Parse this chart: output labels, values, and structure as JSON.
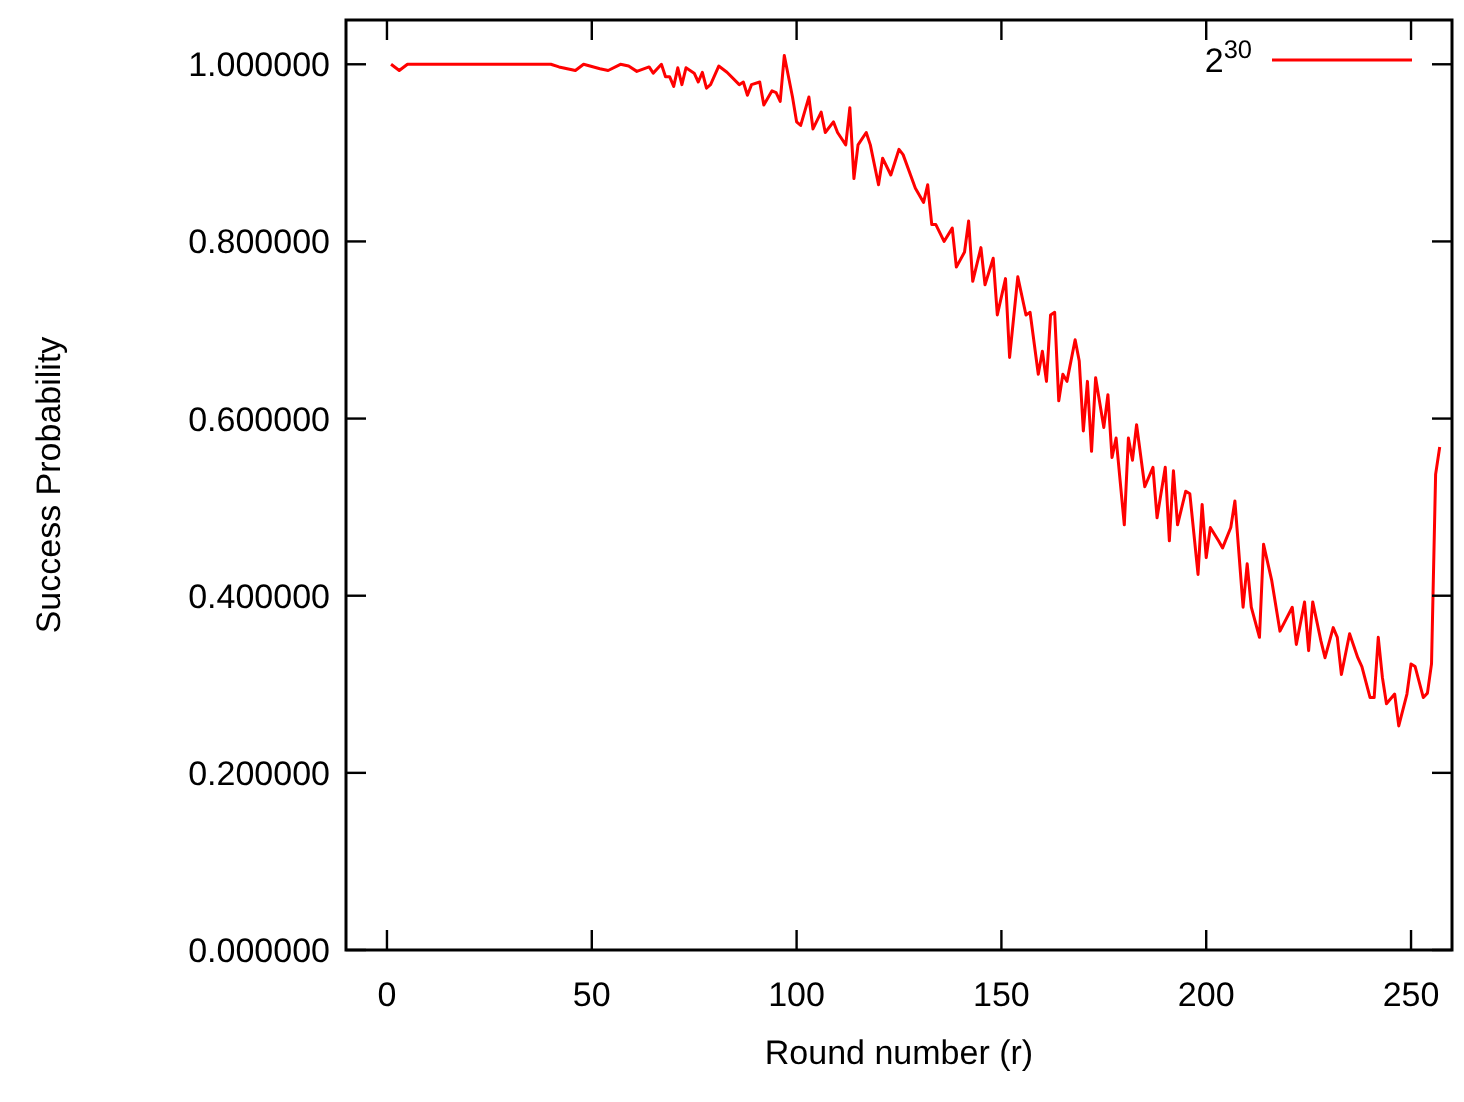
{
  "chart_data": {
    "type": "line",
    "xlabel": "Round number (r)",
    "ylabel": "Success Probability",
    "xlim": [
      -10,
      260
    ],
    "xticks": [
      0,
      50,
      100,
      150,
      200,
      250
    ],
    "ylim": [
      0,
      1.05
    ],
    "yticks": [
      {
        "value": 0,
        "label": "0.000000"
      },
      {
        "value": 0.2,
        "label": "0.200000"
      },
      {
        "value": 0.4,
        "label": "0.400000"
      },
      {
        "value": 0.6,
        "label": "0.600000"
      },
      {
        "value": 0.8,
        "label": "0.800000"
      },
      {
        "value": 1,
        "label": "1.000000"
      }
    ],
    "grid": false,
    "legend": "top right",
    "marker": "none",
    "line_style": "solid",
    "series": [
      {
        "name": "2$^{30}$",
        "color": "#ff0000",
        "x": [
          1,
          3,
          5,
          40,
          42,
          46,
          48,
          52,
          54,
          57,
          59,
          61,
          64,
          65,
          67,
          68,
          69,
          70,
          71,
          72,
          73,
          75,
          76,
          77,
          78,
          79,
          81,
          83,
          86,
          87,
          88,
          89,
          91,
          92,
          94,
          95,
          96,
          97,
          99,
          100,
          101,
          103,
          104,
          106,
          107,
          109,
          110,
          112,
          113,
          114,
          115,
          117,
          118,
          120,
          121,
          123,
          125,
          126,
          129,
          131,
          132,
          133,
          134,
          136,
          138,
          139,
          141,
          142,
          143,
          145,
          146,
          148,
          149,
          151,
          152,
          154,
          156,
          157,
          159,
          160,
          161,
          162,
          163,
          164,
          165,
          166,
          168,
          169,
          170,
          171,
          172,
          173,
          175,
          176,
          177,
          178,
          180,
          181,
          182,
          183,
          185,
          187,
          188,
          190,
          191,
          192,
          193,
          195,
          196,
          198,
          199,
          200,
          201,
          203,
          204,
          206,
          207,
          209,
          210,
          211,
          213,
          214,
          216,
          218,
          221,
          222,
          224,
          225,
          226,
          228,
          229,
          231,
          232,
          233,
          235,
          237,
          238,
          240,
          241,
          242,
          243,
          244,
          246,
          247,
          249,
          250,
          251,
          253,
          254,
          255,
          256,
          257
        ],
        "values": [
          1.0,
          0.993,
          1.0,
          1.0,
          0.997,
          0.993,
          1.0,
          0.995,
          0.993,
          1.0,
          0.998,
          0.992,
          0.997,
          0.99,
          1.0,
          0.986,
          0.986,
          0.975,
          0.996,
          0.977,
          0.996,
          0.99,
          0.98,
          0.991,
          0.973,
          0.977,
          0.998,
          0.991,
          0.977,
          0.98,
          0.965,
          0.977,
          0.98,
          0.954,
          0.97,
          0.968,
          0.958,
          1.01,
          0.963,
          0.935,
          0.931,
          0.963,
          0.927,
          0.946,
          0.923,
          0.935,
          0.923,
          0.909,
          0.951,
          0.871,
          0.909,
          0.923,
          0.909,
          0.864,
          0.894,
          0.875,
          0.904,
          0.898,
          0.86,
          0.844,
          0.864,
          0.819,
          0.819,
          0.8,
          0.815,
          0.771,
          0.788,
          0.823,
          0.755,
          0.793,
          0.751,
          0.781,
          0.717,
          0.758,
          0.669,
          0.76,
          0.717,
          0.72,
          0.65,
          0.676,
          0.642,
          0.717,
          0.72,
          0.62,
          0.65,
          0.642,
          0.689,
          0.665,
          0.586,
          0.642,
          0.563,
          0.646,
          0.59,
          0.627,
          0.556,
          0.578,
          0.48,
          0.578,
          0.553,
          0.593,
          0.523,
          0.545,
          0.488,
          0.545,
          0.462,
          0.541,
          0.48,
          0.518,
          0.515,
          0.424,
          0.503,
          0.443,
          0.477,
          0.462,
          0.454,
          0.477,
          0.507,
          0.387,
          0.436,
          0.387,
          0.353,
          0.458,
          0.417,
          0.36,
          0.387,
          0.345,
          0.393,
          0.338,
          0.393,
          0.349,
          0.33,
          0.364,
          0.353,
          0.311,
          0.357,
          0.33,
          0.32,
          0.285,
          0.285,
          0.353,
          0.308,
          0.278,
          0.289,
          0.253,
          0.289,
          0.323,
          0.32,
          0.285,
          0.29,
          0.323,
          0.537,
          0.568
        ]
      }
    ]
  }
}
